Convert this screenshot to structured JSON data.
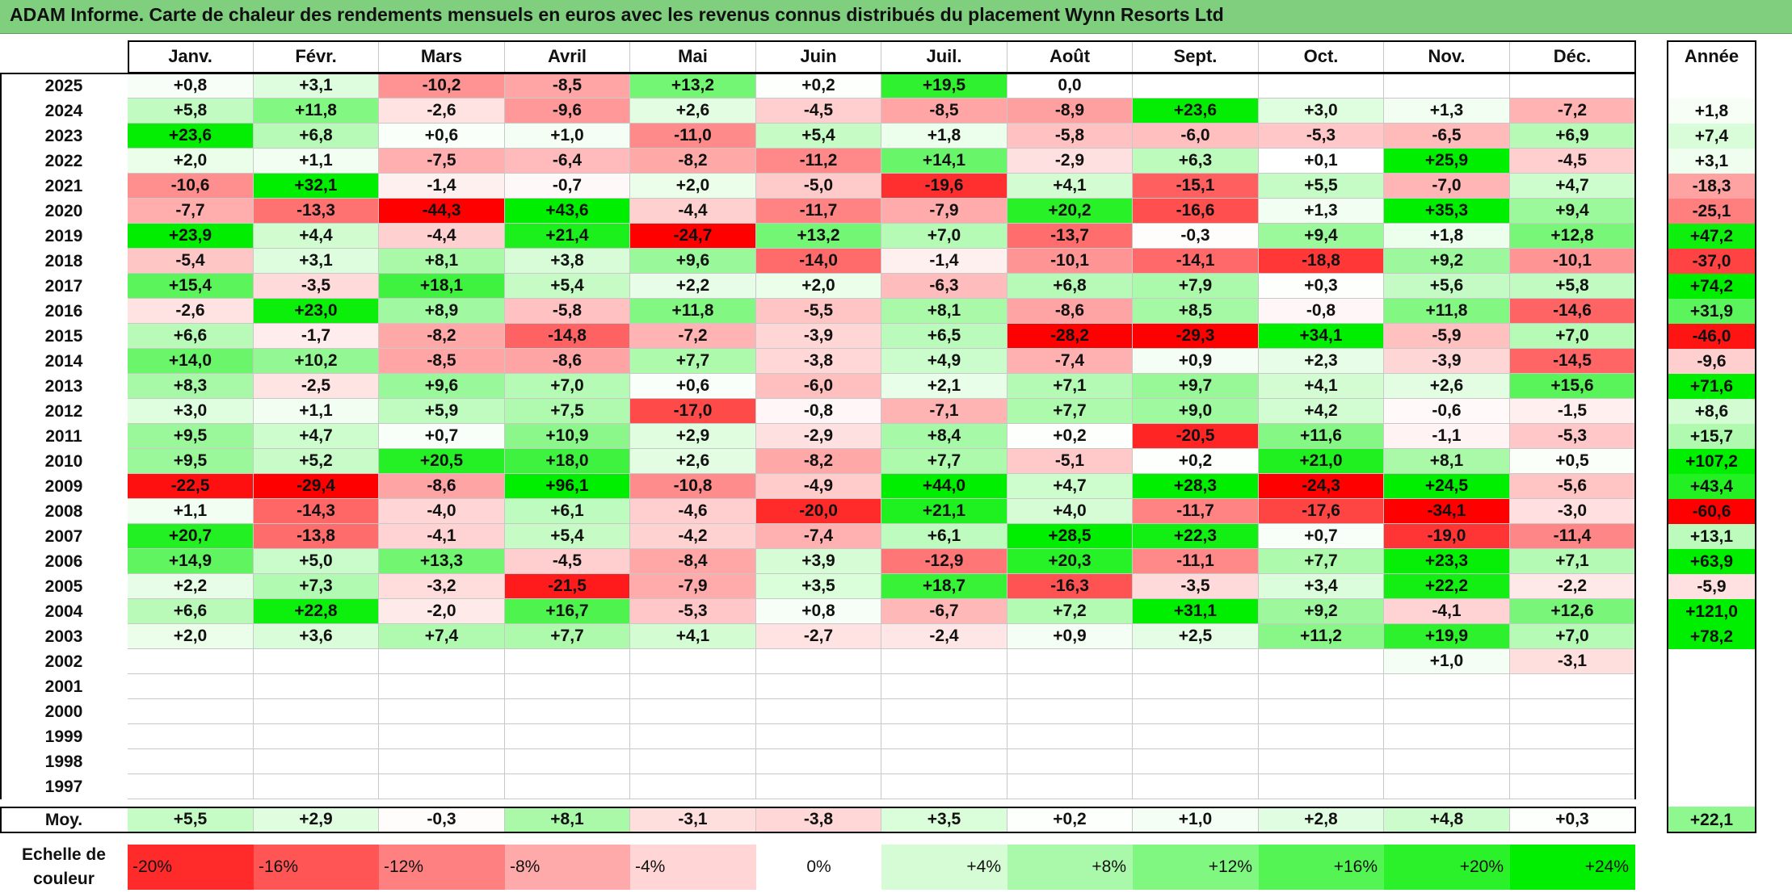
{
  "title": "ADAM Informe. Carte de chaleur des rendements mensuels en euros avec les revenus connus distribués du placement Wynn Resorts Ltd",
  "colors": {
    "title_bg": "#7fcf7f",
    "negative_max": "#ff0000",
    "neutral": "#ffffff",
    "positive_max": "#00ee00"
  },
  "chart_data": {
    "type": "heatmap",
    "title": "ADAM Informe. Carte de chaleur des rendements mensuels en euros avec les revenus connus distribués du placement Wynn Resorts Ltd",
    "months": [
      "Janv.",
      "Févr.",
      "Mars",
      "Avril",
      "Mai",
      "Juin",
      "Juil.",
      "Août",
      "Sept.",
      "Oct.",
      "Nov.",
      "Déc."
    ],
    "year_header": "Année",
    "rows": [
      {
        "year": "2025",
        "values": [
          "+0,8",
          "+3,1",
          "-10,2",
          "-8,5",
          "+13,2",
          "+0,2",
          "+19,5",
          "0,0",
          "",
          "",
          "",
          ""
        ],
        "annual": ""
      },
      {
        "year": "2024",
        "values": [
          "+5,8",
          "+11,8",
          "-2,6",
          "-9,6",
          "+2,6",
          "-4,5",
          "-8,5",
          "-8,9",
          "+23,6",
          "+3,0",
          "+1,3",
          "-7,2"
        ],
        "annual": "+1,8"
      },
      {
        "year": "2023",
        "values": [
          "+23,6",
          "+6,8",
          "+0,6",
          "+1,0",
          "-11,0",
          "+5,4",
          "+1,8",
          "-5,8",
          "-6,0",
          "-5,3",
          "-6,5",
          "+6,9"
        ],
        "annual": "+7,4"
      },
      {
        "year": "2022",
        "values": [
          "+2,0",
          "+1,1",
          "-7,5",
          "-6,4",
          "-8,2",
          "-11,2",
          "+14,1",
          "-2,9",
          "+6,3",
          "+0,1",
          "+25,9",
          "-4,5"
        ],
        "annual": "+3,1"
      },
      {
        "year": "2021",
        "values": [
          "-10,6",
          "+32,1",
          "-1,4",
          "-0,7",
          "+2,0",
          "-5,0",
          "-19,6",
          "+4,1",
          "-15,1",
          "+5,5",
          "-7,0",
          "+4,7"
        ],
        "annual": "-18,3"
      },
      {
        "year": "2020",
        "values": [
          "-7,7",
          "-13,3",
          "-44,3",
          "+43,6",
          "-4,4",
          "-11,7",
          "-7,9",
          "+20,2",
          "-16,6",
          "+1,3",
          "+35,3",
          "+9,4"
        ],
        "annual": "-25,1"
      },
      {
        "year": "2019",
        "values": [
          "+23,9",
          "+4,4",
          "-4,4",
          "+21,4",
          "-24,7",
          "+13,2",
          "+7,0",
          "-13,7",
          "-0,3",
          "+9,4",
          "+1,8",
          "+12,8"
        ],
        "annual": "+47,2"
      },
      {
        "year": "2018",
        "values": [
          "-5,4",
          "+3,1",
          "+8,1",
          "+3,8",
          "+9,6",
          "-14,0",
          "-1,4",
          "-10,1",
          "-14,1",
          "-18,8",
          "+9,2",
          "-10,1"
        ],
        "annual": "-37,0"
      },
      {
        "year": "2017",
        "values": [
          "+15,4",
          "-3,5",
          "+18,1",
          "+5,4",
          "+2,2",
          "+2,0",
          "-6,3",
          "+6,8",
          "+7,9",
          "+0,3",
          "+5,6",
          "+5,8"
        ],
        "annual": "+74,2"
      },
      {
        "year": "2016",
        "values": [
          "-2,6",
          "+23,0",
          "+8,9",
          "-5,8",
          "+11,8",
          "-5,5",
          "+8,1",
          "-8,6",
          "+8,5",
          "-0,8",
          "+11,8",
          "-14,6"
        ],
        "annual": "+31,9"
      },
      {
        "year": "2015",
        "values": [
          "+6,6",
          "-1,7",
          "-8,2",
          "-14,8",
          "-7,2",
          "-3,9",
          "+6,5",
          "-28,2",
          "-29,3",
          "+34,1",
          "-5,9",
          "+7,0"
        ],
        "annual": "-46,0"
      },
      {
        "year": "2014",
        "values": [
          "+14,0",
          "+10,2",
          "-8,5",
          "-8,6",
          "+7,7",
          "-3,8",
          "+4,9",
          "-7,4",
          "+0,9",
          "+2,3",
          "-3,9",
          "-14,5"
        ],
        "annual": "-9,6"
      },
      {
        "year": "2013",
        "values": [
          "+8,3",
          "-2,5",
          "+9,6",
          "+7,0",
          "+0,6",
          "-6,0",
          "+2,1",
          "+7,1",
          "+9,7",
          "+4,1",
          "+2,6",
          "+15,6"
        ],
        "annual": "+71,6"
      },
      {
        "year": "2012",
        "values": [
          "+3,0",
          "+1,1",
          "+5,9",
          "+7,5",
          "-17,0",
          "-0,8",
          "-7,1",
          "+7,7",
          "+9,0",
          "+4,2",
          "-0,6",
          "-1,5"
        ],
        "annual": "+8,6"
      },
      {
        "year": "2011",
        "values": [
          "+9,5",
          "+4,7",
          "+0,7",
          "+10,9",
          "+2,9",
          "-2,9",
          "+8,4",
          "+0,2",
          "-20,5",
          "+11,6",
          "-1,1",
          "-5,3"
        ],
        "annual": "+15,7"
      },
      {
        "year": "2010",
        "values": [
          "+9,5",
          "+5,2",
          "+20,5",
          "+18,0",
          "+2,6",
          "-8,2",
          "+7,7",
          "-5,1",
          "+0,2",
          "+21,0",
          "+8,1",
          "+0,5"
        ],
        "annual": "+107,2"
      },
      {
        "year": "2009",
        "values": [
          "-22,5",
          "-29,4",
          "-8,6",
          "+96,1",
          "-10,8",
          "-4,9",
          "+44,0",
          "+4,7",
          "+28,3",
          "-24,3",
          "+24,5",
          "-5,6"
        ],
        "annual": "+43,4"
      },
      {
        "year": "2008",
        "values": [
          "+1,1",
          "-14,3",
          "-4,0",
          "+6,1",
          "-4,6",
          "-20,0",
          "+21,1",
          "+4,0",
          "-11,7",
          "-17,6",
          "-34,1",
          "-3,0"
        ],
        "annual": "-60,6"
      },
      {
        "year": "2007",
        "values": [
          "+20,7",
          "-13,8",
          "-4,1",
          "+5,4",
          "-4,2",
          "-7,4",
          "+6,1",
          "+28,5",
          "+22,3",
          "+0,7",
          "-19,0",
          "-11,4"
        ],
        "annual": "+13,1"
      },
      {
        "year": "2006",
        "values": [
          "+14,9",
          "+5,0",
          "+13,3",
          "-4,5",
          "-8,4",
          "+3,9",
          "-12,9",
          "+20,3",
          "-11,1",
          "+7,7",
          "+23,3",
          "+7,1"
        ],
        "annual": "+63,9"
      },
      {
        "year": "2005",
        "values": [
          "+2,2",
          "+7,3",
          "-3,2",
          "-21,5",
          "-7,9",
          "+3,5",
          "+18,7",
          "-16,3",
          "-3,5",
          "+3,4",
          "+22,2",
          "-2,2"
        ],
        "annual": "-5,9"
      },
      {
        "year": "2004",
        "values": [
          "+6,6",
          "+22,8",
          "-2,0",
          "+16,7",
          "-5,3",
          "+0,8",
          "-6,7",
          "+7,2",
          "+31,1",
          "+9,2",
          "-4,1",
          "+12,6"
        ],
        "annual": "+121,0"
      },
      {
        "year": "2003",
        "values": [
          "+2,0",
          "+3,6",
          "+7,4",
          "+7,7",
          "+4,1",
          "-2,7",
          "-2,4",
          "+0,9",
          "+2,5",
          "+11,2",
          "+19,9",
          "+7,0"
        ],
        "annual": "+78,2"
      },
      {
        "year": "2002",
        "values": [
          "",
          "",
          "",
          "",
          "",
          "",
          "",
          "",
          "",
          "",
          "+1,0",
          "-3,1"
        ],
        "annual": ""
      },
      {
        "year": "2001",
        "values": [
          "",
          "",
          "",
          "",
          "",
          "",
          "",
          "",
          "",
          "",
          "",
          ""
        ],
        "annual": ""
      },
      {
        "year": "2000",
        "values": [
          "",
          "",
          "",
          "",
          "",
          "",
          "",
          "",
          "",
          "",
          "",
          ""
        ],
        "annual": ""
      },
      {
        "year": "1999",
        "values": [
          "",
          "",
          "",
          "",
          "",
          "",
          "",
          "",
          "",
          "",
          "",
          ""
        ],
        "annual": ""
      },
      {
        "year": "1998",
        "values": [
          "",
          "",
          "",
          "",
          "",
          "",
          "",
          "",
          "",
          "",
          "",
          ""
        ],
        "annual": ""
      },
      {
        "year": "1997",
        "values": [
          "",
          "",
          "",
          "",
          "",
          "",
          "",
          "",
          "",
          "",
          "",
          ""
        ],
        "annual": ""
      }
    ],
    "average": {
      "label": "Moy.",
      "values": [
        "+5,5",
        "+2,9",
        "-0,3",
        "+8,1",
        "-3,1",
        "-3,8",
        "+3,5",
        "+0,2",
        "+1,0",
        "+2,8",
        "+4,8",
        "+0,3"
      ],
      "annual": "+22,1"
    },
    "legend": {
      "label_line1": "Echelle de",
      "label_line2": "couleur",
      "items": [
        {
          "label": "-20%",
          "value": -20
        },
        {
          "label": "-16%",
          "value": -16
        },
        {
          "label": "-12%",
          "value": -12
        },
        {
          "label": "-8%",
          "value": -8
        },
        {
          "label": "-4%",
          "value": -4
        },
        {
          "label": "0%",
          "value": 0
        },
        {
          "label": "+4%",
          "value": 4
        },
        {
          "label": "+8%",
          "value": 8
        },
        {
          "label": "+12%",
          "value": 12
        },
        {
          "label": "+16%",
          "value": 16
        },
        {
          "label": "+20%",
          "value": 20
        },
        {
          "label": "+24%",
          "value": 24
        }
      ]
    }
  }
}
